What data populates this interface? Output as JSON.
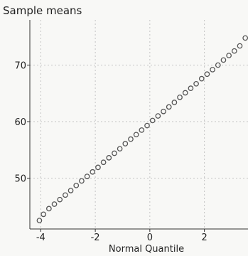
{
  "chart_data": {
    "type": "scatter",
    "title": "Sample means",
    "xlabel": "Normal Quantile",
    "ylabel": "",
    "xlim": [
      -4.4,
      3.6
    ],
    "ylim": [
      41,
      78
    ],
    "xticks": [
      -4,
      -2,
      0,
      2
    ],
    "yticks": [
      50,
      60,
      70
    ],
    "grid": true,
    "series": [
      {
        "x": [
          -4.05,
          -3.9,
          -3.7,
          -3.5,
          -3.3,
          -3.1,
          -2.9,
          -2.7,
          -2.5,
          -2.3,
          -2.1,
          -1.9,
          -1.7,
          -1.5,
          -1.3,
          -1.1,
          -0.9,
          -0.7,
          -0.5,
          -0.3,
          -0.1,
          0.1,
          0.3,
          0.5,
          0.7,
          0.9,
          1.1,
          1.3,
          1.5,
          1.7,
          1.9,
          2.1,
          2.3,
          2.5,
          2.7,
          2.9,
          3.1,
          3.3,
          3.5
        ],
        "y": [
          42.5,
          43.6,
          44.6,
          45.4,
          46.2,
          47.0,
          47.8,
          48.7,
          49.5,
          50.3,
          51.1,
          51.9,
          52.8,
          53.6,
          54.4,
          55.2,
          56.1,
          56.9,
          57.7,
          58.5,
          59.3,
          60.2,
          61.0,
          61.8,
          62.6,
          63.4,
          64.3,
          65.1,
          65.9,
          66.7,
          67.6,
          68.4,
          69.2,
          70.0,
          70.9,
          71.7,
          72.5,
          73.4,
          74.8
        ]
      }
    ],
    "colors": {
      "marker": "#555555",
      "axis": "#333333",
      "grid": "#c4c4c4",
      "text": "#222222",
      "background": "#f8f8f6"
    }
  }
}
